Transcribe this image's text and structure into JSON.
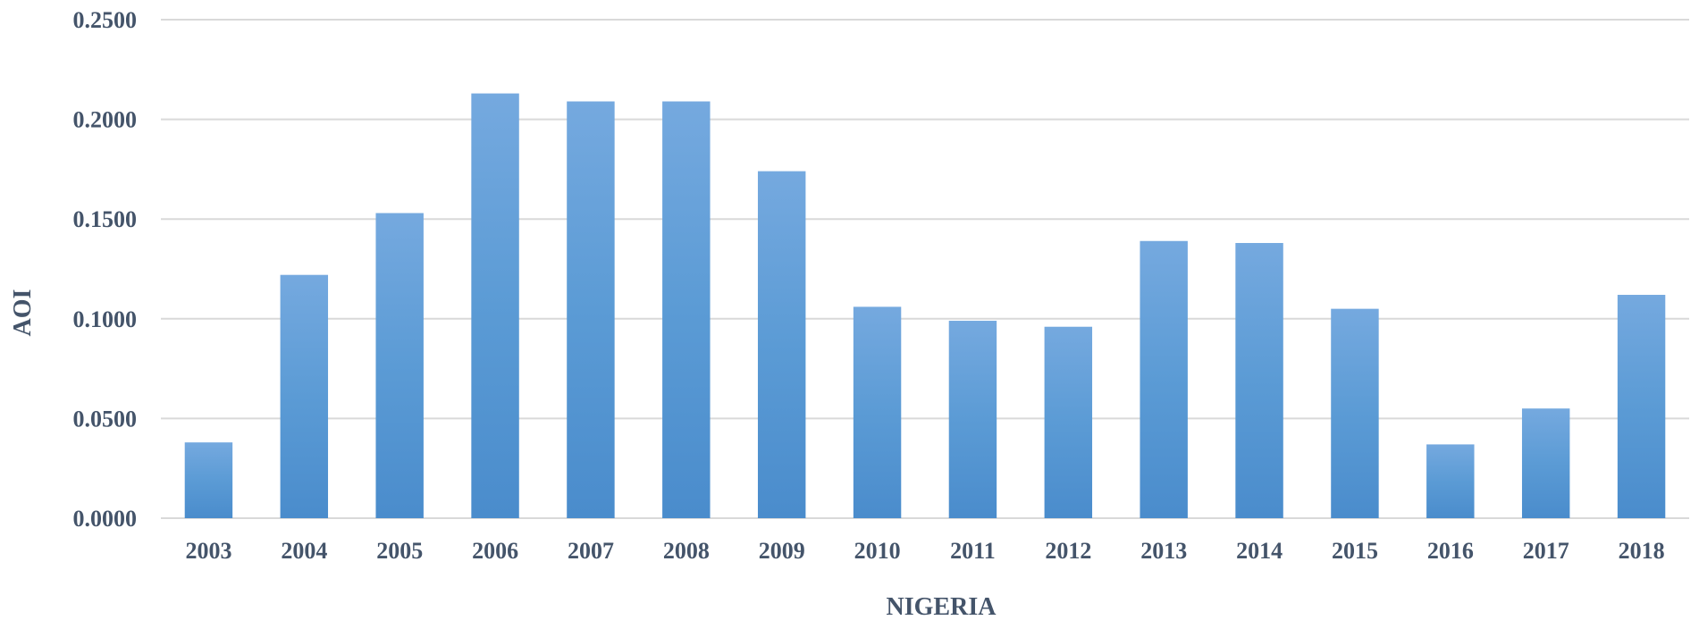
{
  "chart_data": {
    "type": "bar",
    "title": "",
    "xlabel": "NIGERIA",
    "ylabel": "AOI",
    "ylim": [
      0,
      0.25
    ],
    "yticks": [
      "0.0000",
      "0.0500",
      "0.1000",
      "0.1500",
      "0.2000",
      "0.2500"
    ],
    "grid": true,
    "legend": "none",
    "categories": [
      "2003",
      "2004",
      "2005",
      "2006",
      "2007",
      "2008",
      "2009",
      "2010",
      "2011",
      "2012",
      "2013",
      "2014",
      "2015",
      "2016",
      "2017",
      "2018"
    ],
    "values": [
      0.038,
      0.122,
      0.153,
      0.213,
      0.209,
      0.209,
      0.174,
      0.106,
      0.099,
      0.096,
      0.139,
      0.138,
      0.105,
      0.037,
      0.055,
      0.112
    ],
    "bar_color": "#5b9bd5",
    "bar_color_light": "#75a9df",
    "bar_color_dark": "#4a8ccc"
  }
}
